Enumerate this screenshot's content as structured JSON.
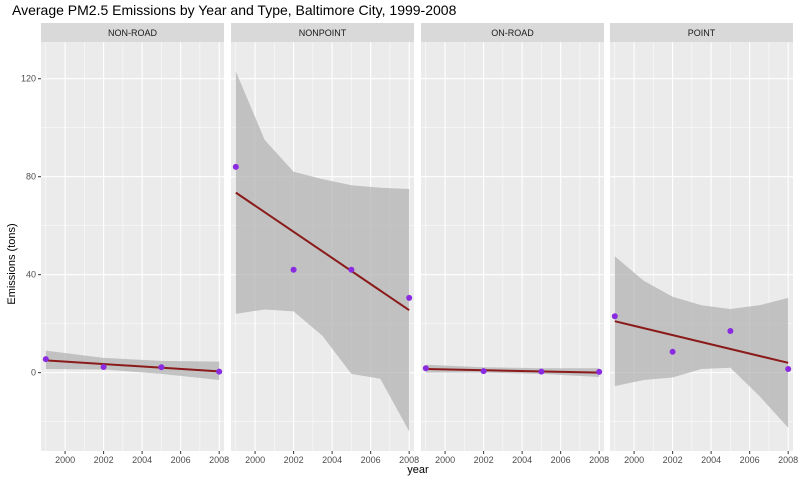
{
  "chart_data": {
    "type": "scatter",
    "title": "Average PM2.5 Emissions by Year and Type, Baltimore City, 1999-2008",
    "xlabel": "year",
    "ylabel": "Emissions (tons)",
    "xlim": [
      1998.75,
      2008.25
    ],
    "ylim": [
      -32,
      135
    ],
    "x_ticks": [
      2000,
      2002,
      2004,
      2006,
      2008
    ],
    "y_ticks": [
      0,
      40,
      80,
      120
    ],
    "grid": true,
    "colors": {
      "panel_bg": "#ebebeb",
      "strip_bg": "#d9d9d9",
      "grid_major": "#ffffff",
      "point": "#8a2be2",
      "fit_line": "#8b1a1a",
      "ribbon": "#b3b3b3"
    },
    "facets": [
      {
        "label": "NON-ROAD",
        "points": [
          {
            "x": 1999,
            "y": 5.5
          },
          {
            "x": 2002,
            "y": 2.3
          },
          {
            "x": 2005,
            "y": 2.2
          },
          {
            "x": 2008,
            "y": 0.4
          }
        ],
        "fit": {
          "x": [
            1999,
            2008
          ],
          "y": [
            5.0,
            0.5
          ]
        },
        "band": {
          "x": [
            1999,
            2002,
            2005,
            2008
          ],
          "lower": [
            1.5,
            1.3,
            -0.5,
            -3.0
          ],
          "upper": [
            9.0,
            6.0,
            4.8,
            4.5
          ]
        }
      },
      {
        "label": "NONPOINT",
        "points": [
          {
            "x": 1999,
            "y": 84.0
          },
          {
            "x": 2002,
            "y": 42.0
          },
          {
            "x": 2005,
            "y": 42.0
          },
          {
            "x": 2008,
            "y": 30.5
          }
        ],
        "fit": {
          "x": [
            1999,
            2008
          ],
          "y": [
            73.5,
            25.5
          ]
        },
        "band": {
          "x": [
            1999,
            2000.5,
            2002,
            2003.5,
            2005,
            2006.5,
            2008
          ],
          "lower": [
            24.0,
            25.8,
            25.0,
            15.0,
            -0.5,
            -2.5,
            -24.0
          ],
          "upper": [
            123.0,
            95.0,
            82.0,
            79.0,
            76.5,
            75.5,
            75.0
          ]
        }
      },
      {
        "label": "ON-ROAD",
        "points": [
          {
            "x": 1999,
            "y": 1.8
          },
          {
            "x": 2002,
            "y": 0.6
          },
          {
            "x": 2005,
            "y": 0.4
          },
          {
            "x": 2008,
            "y": 0.3
          }
        ],
        "fit": {
          "x": [
            1999,
            2008
          ],
          "y": [
            1.5,
            0.0
          ]
        },
        "band": {
          "x": [
            1999,
            2002,
            2005,
            2008
          ],
          "lower": [
            0.0,
            0.0,
            -0.5,
            -1.8
          ],
          "upper": [
            3.2,
            2.2,
            1.8,
            1.8
          ]
        }
      },
      {
        "label": "POINT",
        "points": [
          {
            "x": 1999,
            "y": 23.0
          },
          {
            "x": 2002,
            "y": 8.5
          },
          {
            "x": 2005,
            "y": 17.0
          },
          {
            "x": 2008,
            "y": 1.5
          }
        ],
        "fit": {
          "x": [
            1999,
            2008
          ],
          "y": [
            21.0,
            4.0
          ]
        },
        "band": {
          "x": [
            1999,
            2000.5,
            2002,
            2003.5,
            2005,
            2006.5,
            2008
          ],
          "lower": [
            -5.5,
            -3.0,
            -2.0,
            1.5,
            2.0,
            -9.5,
            -22.5
          ],
          "upper": [
            47.5,
            37.5,
            31.0,
            27.5,
            26.0,
            27.5,
            30.5
          ]
        }
      }
    ]
  }
}
